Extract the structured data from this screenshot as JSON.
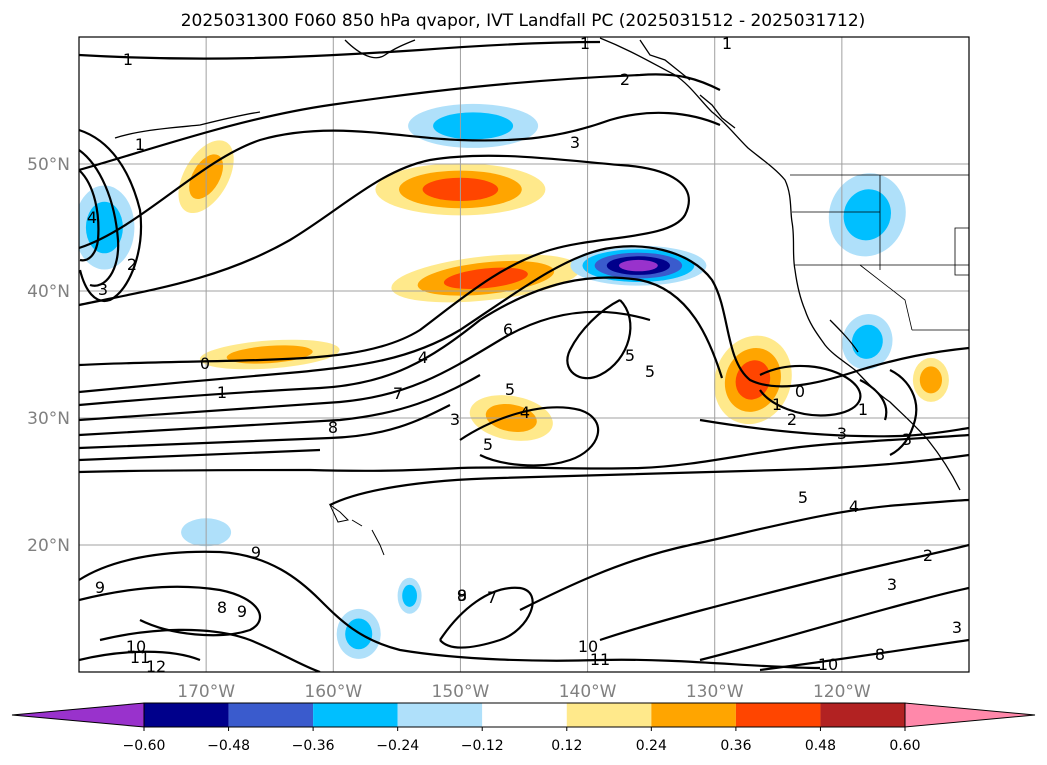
{
  "chart_data": {
    "type": "contour-map",
    "title": "2025031300 F060 850 hPa qvapor, IVT Landfall PC (2025031512 - 2025031712)",
    "map": {
      "lon_range": [
        -180,
        -110
      ],
      "lat_range": [
        10,
        60
      ],
      "x_ticks": [
        "170°W",
        "160°W",
        "150°W",
        "140°W",
        "130°W",
        "120°W"
      ],
      "y_ticks": [
        "20°N",
        "30°N",
        "40°N",
        "50°N"
      ],
      "gridlines": true
    },
    "colorbar": {
      "orientation": "horizontal",
      "extend": "both",
      "levels": [
        -0.72,
        -0.6,
        -0.48,
        -0.36,
        -0.24,
        -0.12,
        0.12,
        0.24,
        0.36,
        0.48,
        0.6,
        0.72
      ],
      "colors": [
        "#9932cc",
        "#00008b",
        "#3a5bcd",
        "#00bfff",
        "#afe0fa",
        "#ffffff",
        "#ffe98b",
        "#ffa500",
        "#ff4500",
        "#b22222",
        "#ff88aa"
      ],
      "tick_labels": [
        "-0.60",
        "-0.48",
        "-0.36",
        "-0.24",
        "-0.12",
        "0.12",
        "0.24",
        "0.36",
        "0.48",
        "0.60"
      ]
    },
    "shaded_field": [
      {
        "value": 0.44,
        "lon": -148,
        "lat": 41
      },
      {
        "value": 0.38,
        "lon": -150,
        "lat": 48
      },
      {
        "value": 0.36,
        "lon": -165,
        "lat": 35
      },
      {
        "value": 0.38,
        "lon": -127,
        "lat": 33
      },
      {
        "value": -0.62,
        "lon": -136,
        "lat": 42
      },
      {
        "value": -0.36,
        "lon": -149,
        "lat": 53
      },
      {
        "value": -0.36,
        "lon": -118,
        "lat": 46
      },
      {
        "value": -0.36,
        "lon": -178,
        "lat": 45
      },
      {
        "value": -0.3,
        "lon": -118,
        "lat": 36
      },
      {
        "value": 0.3,
        "lon": -146,
        "lat": 30
      },
      {
        "value": 0.3,
        "lon": -113,
        "lat": 33
      },
      {
        "value": 0.26,
        "lon": -170,
        "lat": 49
      },
      {
        "value": -0.26,
        "lon": -154,
        "lat": 16
      },
      {
        "value": -0.24,
        "lon": -170,
        "lat": 21
      },
      {
        "value": -0.3,
        "lon": -158,
        "lat": 13
      }
    ],
    "contour_labels": [
      "1",
      "1",
      "1",
      "2",
      "3",
      "1",
      "4",
      "3",
      "2",
      "0",
      "1",
      "7",
      "8",
      "4",
      "6",
      "5",
      "4",
      "5",
      "5",
      "5",
      "3",
      "3",
      "2",
      "1",
      "0",
      "1",
      "3",
      "4",
      "5",
      "2",
      "3",
      "3",
      "9",
      "9",
      "9",
      "8",
      "9",
      "8",
      "7",
      "10",
      "11",
      "12",
      "10",
      "11",
      "10",
      "8"
    ]
  }
}
